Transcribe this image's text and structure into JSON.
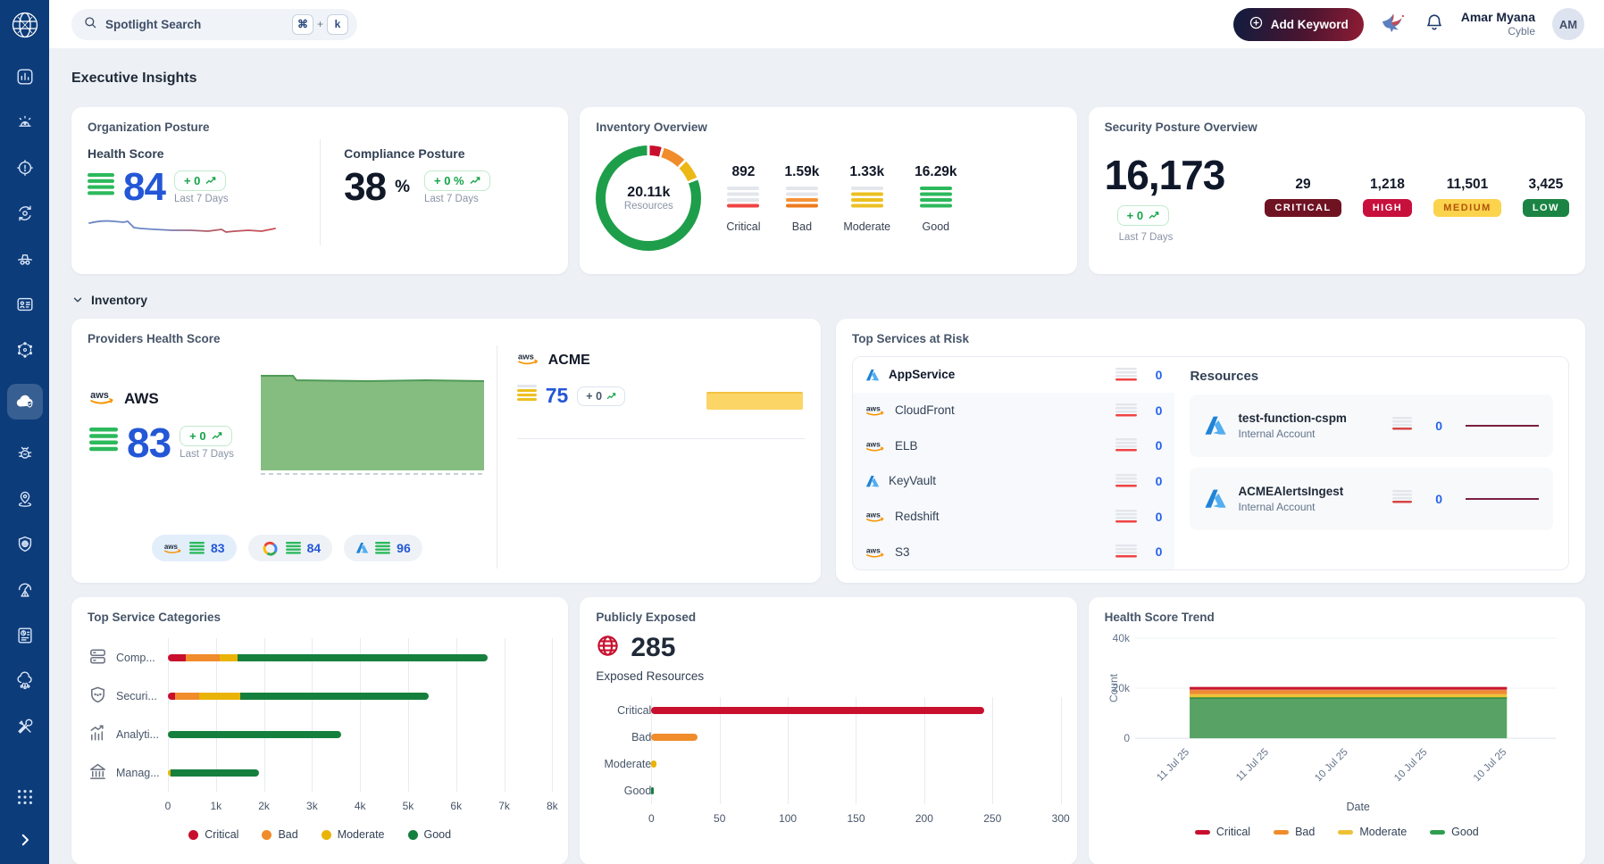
{
  "topbar": {
    "search": {
      "placeholder": "Spotlight Search",
      "key1": "⌘",
      "key2": "k"
    },
    "add_keyword_label": "Add Keyword",
    "user": {
      "name": "Amar Myana",
      "org": "Cyble",
      "initials": "AM"
    }
  },
  "page": {
    "title": "Executive Insights",
    "inventory_section": "Inventory"
  },
  "org_posture": {
    "title": "Organization Posture",
    "health": {
      "label": "Health Score",
      "score": "84",
      "delta": "+ 0",
      "period": "Last 7 Days"
    },
    "compliance": {
      "label": "Compliance Posture",
      "score": "38",
      "unit": "%",
      "delta": "+ 0 %",
      "period": "Last 7 Days"
    }
  },
  "inventory_overview": {
    "title": "Inventory Overview",
    "center_value": "20.11k",
    "center_label": "Resources",
    "stats": [
      {
        "value": "892",
        "label": "Critical",
        "variant": "critical"
      },
      {
        "value": "1.59k",
        "label": "Bad",
        "variant": "bad"
      },
      {
        "value": "1.33k",
        "label": "Moderate",
        "variant": "moderate"
      },
      {
        "value": "16.29k",
        "label": "Good",
        "variant": "good"
      }
    ]
  },
  "security_posture": {
    "title": "Security Posture Overview",
    "total": "16,173",
    "delta": "+ 0",
    "period": "Last 7 Days",
    "severities": [
      {
        "count": "29",
        "label": "CRITICAL",
        "bg": "#6f1323",
        "fg": "#ffffff"
      },
      {
        "count": "1,218",
        "label": "HIGH",
        "bg": "#c8103d",
        "fg": "#ffffff"
      },
      {
        "count": "11,501",
        "label": "MEDIUM",
        "bg": "#fbd34d",
        "fg": "#b45309"
      },
      {
        "count": "3,425",
        "label": "LOW",
        "bg": "#1b8444",
        "fg": "#ffffff"
      }
    ]
  },
  "providers": {
    "title": "Providers Health Score",
    "main": {
      "provider": "aws",
      "name": "AWS",
      "score": "83",
      "delta": "+ 0",
      "period": "Last 7 Days"
    },
    "pills": [
      {
        "provider": "aws",
        "score": "83",
        "active": true
      },
      {
        "provider": "gcp",
        "score": "84",
        "active": false
      },
      {
        "provider": "azure",
        "score": "96",
        "active": false
      }
    ],
    "account": {
      "provider": "aws",
      "name": "ACME",
      "score": "75",
      "delta": "+ 0"
    }
  },
  "top_services": {
    "title": "Top Services at Risk",
    "services": [
      {
        "name": "AppService",
        "provider": "azure",
        "count": "0"
      },
      {
        "name": "CloudFront",
        "provider": "aws",
        "count": "0"
      },
      {
        "name": "ELB",
        "provider": "aws",
        "count": "0"
      },
      {
        "name": "KeyVault",
        "provider": "azure",
        "count": "0"
      },
      {
        "name": "Redshift",
        "provider": "aws",
        "count": "0"
      },
      {
        "name": "S3",
        "provider": "aws",
        "count": "0"
      }
    ],
    "resources_title": "Resources",
    "resources": [
      {
        "name": "test-function-cspm",
        "account": "Internal Account",
        "provider": "azure",
        "count": "0"
      },
      {
        "name": "ACMEAlertsIngest",
        "account": "Internal Account",
        "provider": "azure",
        "count": "0"
      }
    ]
  },
  "publicly_exposed": {
    "title": "Publicly Exposed",
    "total": "285",
    "subtitle": "Exposed Resources"
  },
  "health_trend_title": "Health Score Trend",
  "categories_title": "Top Service Categories",
  "chart_data": [
    {
      "type": "bar",
      "orientation": "horizontal",
      "stacked": true,
      "title": "Top Service Categories",
      "categories": [
        "Comp...",
        "Securi...",
        "Analyti...",
        "Manag..."
      ],
      "category_icons": [
        "compute-icon",
        "security-icon",
        "analytics-icon",
        "management-icon"
      ],
      "series": [
        {
          "name": "Critical",
          "color": "#c8102e",
          "values": [
            380,
            150,
            0,
            0
          ]
        },
        {
          "name": "Bad",
          "color": "#f08c2b",
          "values": [
            700,
            500,
            0,
            0
          ]
        },
        {
          "name": "Moderate",
          "color": "#eab308",
          "values": [
            370,
            850,
            0,
            60
          ]
        },
        {
          "name": "Good",
          "color": "#15803d",
          "values": [
            5200,
            3920,
            3600,
            1840
          ]
        }
      ],
      "xlim": [
        0,
        8000
      ],
      "xticks": [
        "0",
        "1k",
        "2k",
        "3k",
        "4k",
        "5k",
        "6k",
        "7k",
        "8k"
      ],
      "legend": [
        "Critical",
        "Bad",
        "Moderate",
        "Good"
      ],
      "legend_colors": [
        "#c8102e",
        "#f08c2b",
        "#eab308",
        "#15803d"
      ]
    },
    {
      "type": "bar",
      "orientation": "horizontal",
      "stacked": false,
      "title": "Publicly Exposed",
      "categories": [
        "Critical",
        "Bad",
        "Moderate",
        "Good"
      ],
      "values": [
        244,
        34,
        4,
        2
      ],
      "colors": [
        "#c8102e",
        "#f08c2b",
        "#eab308",
        "#15803d"
      ],
      "xlim": [
        0,
        300
      ],
      "xticks": [
        "0",
        "50",
        "100",
        "150",
        "200",
        "250",
        "300"
      ]
    },
    {
      "type": "area",
      "stacked": true,
      "title": "Health Score Trend",
      "x": [
        "11 Jul 25",
        "11 Jul 25",
        "10 Jul 25",
        "10 Jul 25",
        "10 Jul 25"
      ],
      "series": [
        {
          "name": "Good",
          "color": "#57a264",
          "line": "#15803d",
          "values": [
            16290,
            16290,
            16290,
            16290,
            16290
          ]
        },
        {
          "name": "Moderate",
          "color": "#ecc235",
          "values": [
            1330,
            1330,
            1330,
            1330,
            1330
          ]
        },
        {
          "name": "Bad",
          "color": "#ee8b31",
          "values": [
            1590,
            1590,
            1590,
            1590,
            1590
          ]
        },
        {
          "name": "Critical",
          "color": "#d6504a",
          "line": "#c8102e",
          "values": [
            892,
            892,
            892,
            892,
            892
          ]
        }
      ],
      "ylim": [
        0,
        40000
      ],
      "yticks": [
        "40k",
        "20k",
        "0"
      ],
      "ytick_values": [
        40000,
        20000,
        0
      ],
      "xlabel": "Date",
      "ylabel": "Count",
      "legend": [
        "Critical",
        "Bad",
        "Moderate",
        "Good"
      ],
      "legend_colors": [
        "#c8102e",
        "#f08c2b",
        "#ecc235",
        "#2f9e4f"
      ]
    },
    {
      "type": "pie",
      "variant": "donut",
      "title": "Inventory Overview",
      "labels": [
        "Critical",
        "Bad",
        "Moderate",
        "Good"
      ],
      "values": [
        892,
        1590,
        1330,
        16290
      ],
      "colors": [
        "#c8102e",
        "#f08c2b",
        "#ecb816",
        "#1e9e4a"
      ],
      "center": {
        "value": "20.11k",
        "label": "Resources"
      }
    }
  ]
}
